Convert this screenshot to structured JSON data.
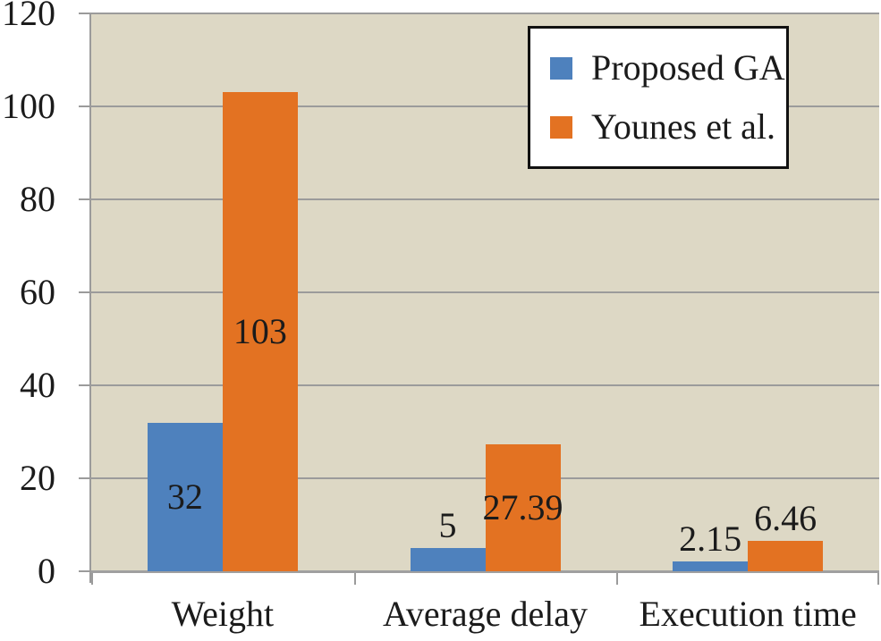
{
  "chart_data": {
    "type": "bar",
    "title": "",
    "categories": [
      "Weight",
      "Average delay",
      "Execution time"
    ],
    "series": [
      {
        "name": "Proposed GA",
        "color": "#4e81bd",
        "values": [
          32,
          5,
          2.15
        ],
        "value_labels": [
          "32",
          "5",
          "2.15"
        ]
      },
      {
        "name": "Younes et al.",
        "color": "#e37222",
        "values": [
          103,
          27.39,
          6.46
        ],
        "value_labels": [
          "103",
          "27.39",
          "6.46"
        ]
      }
    ],
    "y_axis": {
      "min": 0,
      "max": 120,
      "step": 20,
      "tick_labels": [
        "0",
        "20",
        "40",
        "60",
        "80",
        "100",
        "120"
      ]
    },
    "xlabel": "",
    "ylabel": "",
    "grid": true,
    "legend_position": "top-right",
    "colors": {
      "plot_background": "#ddd8c5",
      "gridline": "#9b9b9b",
      "axis": "#a0a0a0",
      "text": "#1b1b1b",
      "legend_border": "#111111",
      "legend_background": "#ffffff"
    }
  }
}
